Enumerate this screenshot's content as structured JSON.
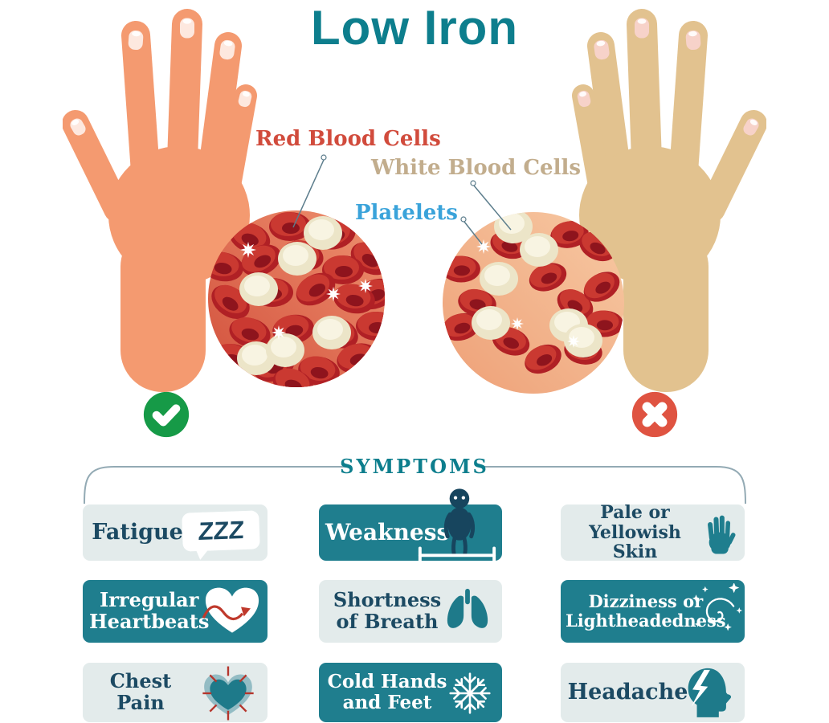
{
  "title": "Low Iron",
  "diagram": {
    "labels": {
      "red_blood_cells": "Red Blood Cells",
      "white_blood_cells": "White Blood Cells",
      "platelets": "Platelets"
    },
    "healthy_marker_icon": "check-icon",
    "anemic_marker_icon": "cross-icon"
  },
  "symptoms": {
    "heading": "SYMPTOMS",
    "cards": [
      {
        "label": "Fatigue",
        "badge": "ZZZ",
        "variant": "light",
        "icon": "sleep-zzz-bubble-icon"
      },
      {
        "label": "Weakness",
        "variant": "teal",
        "icon": "weak-person-icon"
      },
      {
        "label": "Pale or\nYellowish Skin",
        "variant": "light",
        "icon": "pale-hand-icon"
      },
      {
        "label": "Irregular\nHeartbeats",
        "variant": "teal",
        "icon": "heartbeat-arrow-icon"
      },
      {
        "label": "Shortness\nof Breath",
        "variant": "light",
        "icon": "lungs-icon"
      },
      {
        "label": "Dizziness or\nLightheadedness",
        "variant": "teal",
        "icon": "dizziness-spiral-icon"
      },
      {
        "label": "Chest\nPain",
        "variant": "light",
        "icon": "chest-pain-heart-icon"
      },
      {
        "label": "Cold Hands\nand Feet",
        "variant": "teal",
        "icon": "snowflake-icon"
      },
      {
        "label": "Headache",
        "variant": "light",
        "icon": "headache-head-icon"
      }
    ]
  },
  "colors": {
    "teal_heading": "#0d7e8d",
    "teal_card": "#1f7e8e",
    "light_card": "#e3ebeb",
    "navy_text": "#1c4a63",
    "red_label": "#d14b3c",
    "tan_label": "#c2ad8d",
    "blue_label": "#3aa3da",
    "check_green": "#169a47",
    "cross_red": "#df5341",
    "healthy_skin": "#f49a70",
    "pale_skin": "#e2c28f"
  }
}
